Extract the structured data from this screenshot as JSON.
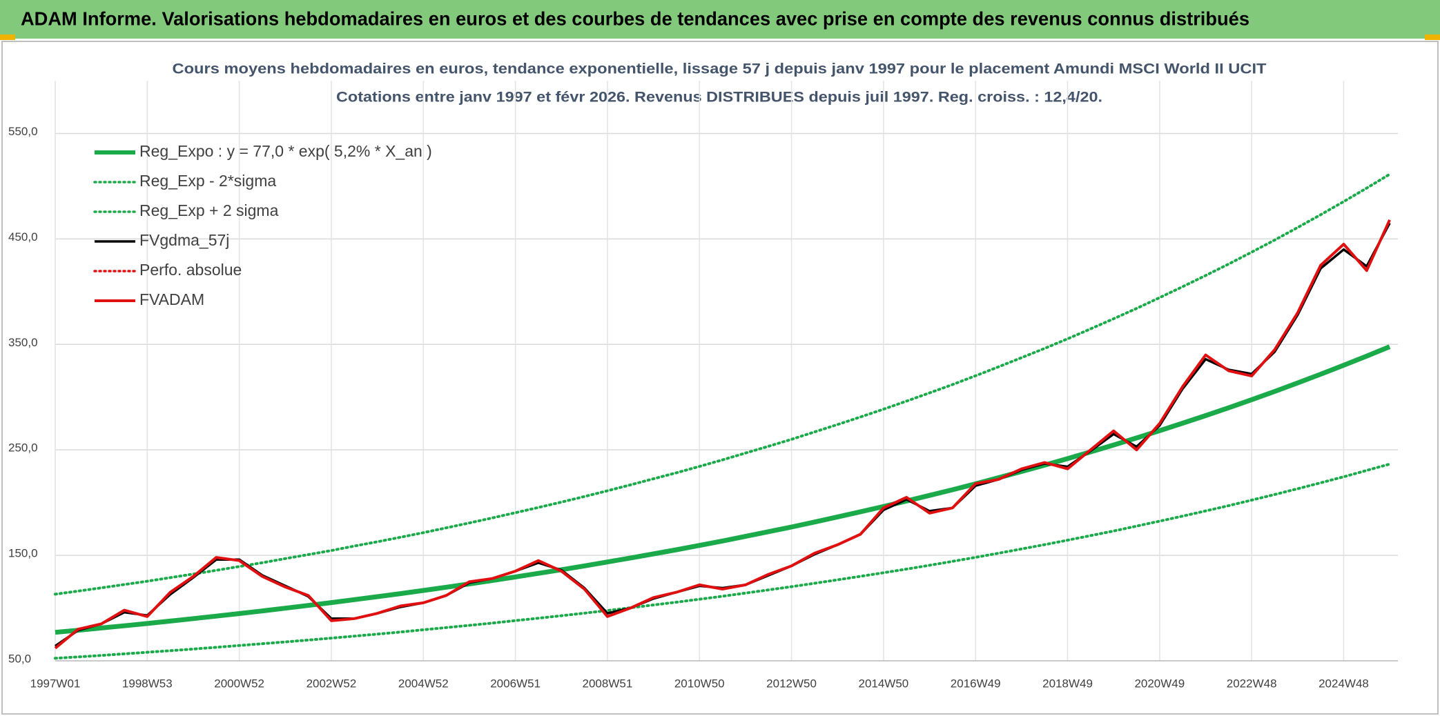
{
  "chart_data": {
    "type": "line",
    "header": "ADAM Informe. Valorisations hebdomadaires en euros et des courbes de tendances avec prise en compte des revenus connus distribués",
    "title": "Cours moyens hebdomadaires en euros, tendance exponentielle, lissage 57 j depuis janv 1997 pour le placement Amundi MSCI World II UCIT",
    "subtitle": "Cotations entre janv 1997 et févr 2026. Revenus DISTRIBUES depuis juil 1997. Reg. croiss. : 12,4/20.",
    "categories": [
      "1997W01",
      null,
      null,
      null,
      "1998W53",
      null,
      null,
      null,
      "2000W52",
      null,
      null,
      null,
      "2002W52",
      null,
      null,
      null,
      "2004W52",
      null,
      null,
      null,
      "2006W51",
      null,
      null,
      null,
      "2008W51",
      null,
      null,
      null,
      "2010W50",
      null,
      null,
      null,
      "2012W50",
      null,
      null,
      null,
      "2014W50",
      null,
      null,
      null,
      "2016W49",
      null,
      null,
      null,
      "2018W49",
      null,
      null,
      null,
      "2020W49",
      null,
      null,
      null,
      "2022W48",
      null,
      null,
      null,
      "2024W48",
      null,
      null
    ],
    "ylim": [
      50,
      600
    ],
    "yticks": [
      {
        "value": 50,
        "label": "50,0"
      },
      {
        "value": 150,
        "label": "150,0"
      },
      {
        "value": 250,
        "label": "250,0"
      },
      {
        "value": 350,
        "label": "350,0"
      },
      {
        "value": 450,
        "label": "450,0"
      },
      {
        "value": 550,
        "label": "550,0"
      }
    ],
    "grid": true,
    "legend": "top-left",
    "series": [
      {
        "name": "Reg_Expo : y = 77,0 * exp( 5,2% *  X_an )",
        "color": "#1aaa4a",
        "dashed": false,
        "values": [
          77.0,
          79.0,
          81.1,
          83.2,
          85.4,
          87.7,
          90.0,
          92.4,
          94.8,
          97.3,
          99.9,
          102.5,
          105.2,
          108.0,
          110.8,
          113.7,
          116.7,
          119.8,
          122.9,
          126.2,
          129.5,
          132.9,
          136.4,
          140.0,
          143.7,
          147.5,
          151.4,
          155.3,
          159.4,
          163.6,
          168.0,
          172.4,
          176.9,
          181.6,
          186.4,
          191.3,
          196.3,
          201.5,
          206.8,
          212.2,
          217.8,
          223.6,
          229.5,
          235.5,
          241.7,
          248.1,
          254.6,
          261.3,
          268.2,
          275.3,
          282.5,
          289.9,
          297.6,
          305.4,
          313.5,
          321.7,
          330.2,
          338.9,
          347.8
        ]
      },
      {
        "name": "Reg_Exp - 2*sigma",
        "color": "#1aaa4a",
        "dashed": true,
        "values": [
          52.4,
          53.7,
          55.1,
          56.6,
          58.1,
          59.6,
          61.2,
          62.8,
          64.5,
          66.2,
          67.9,
          69.7,
          71.5,
          73.4,
          75.3,
          77.3,
          79.4,
          81.5,
          83.6,
          85.8,
          88.1,
          90.4,
          92.8,
          95.2,
          97.7,
          100.3,
          103.0,
          105.6,
          108.4,
          111.2,
          114.2,
          117.2,
          120.3,
          123.5,
          126.8,
          130.1,
          133.5,
          137.0,
          140.6,
          144.3,
          148.1,
          152.0,
          156.1,
          160.1,
          164.4,
          168.7,
          173.1,
          177.7,
          182.4,
          187.2,
          192.1,
          197.1,
          202.4,
          207.7,
          213.2,
          218.8,
          224.5,
          230.5,
          236.5
        ]
      },
      {
        "name": "Reg_Exp + 2 sigma",
        "color": "#1aaa4a",
        "dashed": true,
        "values": [
          113.2,
          116.1,
          119.2,
          122.3,
          125.5,
          128.9,
          132.3,
          135.8,
          139.4,
          143.0,
          146.9,
          150.7,
          154.6,
          158.8,
          162.9,
          167.1,
          171.5,
          176.1,
          180.7,
          185.5,
          190.4,
          195.4,
          200.5,
          205.8,
          211.2,
          216.8,
          222.6,
          228.3,
          234.3,
          240.5,
          247.0,
          253.4,
          260.0,
          267.0,
          274.0,
          281.2,
          288.6,
          296.2,
          304.0,
          311.9,
          320.2,
          328.7,
          337.4,
          346.2,
          355.3,
          364.7,
          374.3,
          384.1,
          394.3,
          404.7,
          415.3,
          426.2,
          437.5,
          448.9,
          460.8,
          472.9,
          485.4,
          498.2,
          511.3
        ]
      },
      {
        "name": "FVgdma_57j",
        "color": "#000000",
        "dashed": false,
        "values": [
          64,
          79,
          85,
          96,
          93,
          113,
          129,
          146,
          146,
          131,
          121,
          111,
          90,
          90,
          95,
          101,
          105,
          112,
          124,
          128,
          135,
          143,
          136,
          119,
          95,
          100,
          109,
          115,
          121,
          119,
          122,
          131,
          140,
          151,
          160,
          170,
          193,
          203,
          192,
          195,
          216,
          222,
          231,
          237,
          234,
          249,
          265,
          253,
          273,
          308,
          336,
          326,
          322,
          343,
          378,
          422,
          440,
          424,
          465
        ]
      },
      {
        "name": "Perfo. absolue",
        "color": "#e01010",
        "dashed": true,
        "values": [
          62,
          80,
          85,
          98,
          92,
          115,
          130,
          148,
          145,
          130,
          120,
          112,
          88,
          90,
          95,
          102,
          105,
          112,
          125,
          128,
          135,
          145,
          135,
          118,
          92,
          100,
          110,
          115,
          122,
          118,
          122,
          132,
          140,
          152,
          160,
          170,
          195,
          205,
          190,
          195,
          218,
          222,
          232,
          238,
          232,
          250,
          268,
          250,
          275,
          310,
          340,
          325,
          320,
          345,
          380,
          425,
          445,
          420,
          468
        ]
      },
      {
        "name": "FVADAM",
        "color": "#e01010",
        "dashed": false,
        "values": [
          62,
          80,
          85,
          98,
          92,
          115,
          130,
          148,
          145,
          130,
          120,
          112,
          88,
          90,
          95,
          102,
          105,
          112,
          125,
          128,
          135,
          145,
          135,
          118,
          92,
          100,
          110,
          115,
          122,
          118,
          122,
          132,
          140,
          152,
          160,
          170,
          195,
          205,
          190,
          195,
          218,
          222,
          232,
          238,
          232,
          250,
          268,
          250,
          275,
          310,
          340,
          325,
          320,
          345,
          380,
          425,
          445,
          420,
          468
        ]
      }
    ]
  }
}
